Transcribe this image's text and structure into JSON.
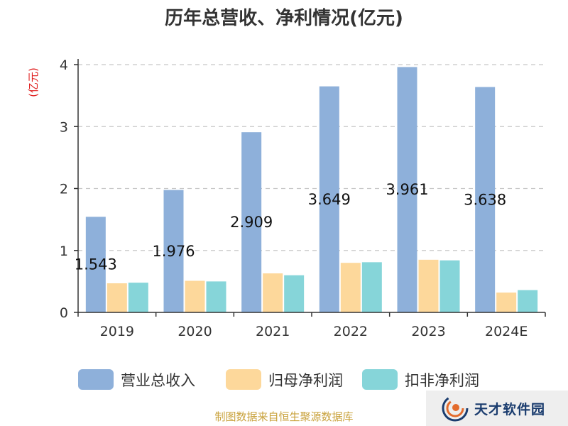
{
  "chart_data": {
    "type": "bar",
    "title": "历年总营收、净利情况(亿元)",
    "y_unit": "(亿元)",
    "categories": [
      "2019",
      "2020",
      "2021",
      "2022",
      "2023",
      "2024E"
    ],
    "series": [
      {
        "name": "营业总收入",
        "color": "#8eb0da",
        "values": [
          1.543,
          1.976,
          2.909,
          3.649,
          3.961,
          3.638
        ],
        "labels": [
          "1.543",
          "1.976",
          "2.909",
          "3.649",
          "3.961",
          "3.638"
        ]
      },
      {
        "name": "归母净利润",
        "color": "#fdd89b",
        "values": [
          0.47,
          0.51,
          0.63,
          0.8,
          0.85,
          0.32
        ]
      },
      {
        "name": "扣非净利润",
        "color": "#86d5d9",
        "values": [
          0.48,
          0.5,
          0.6,
          0.81,
          0.84,
          0.36
        ]
      }
    ],
    "ylim": [
      0,
      4
    ],
    "yticks": [
      0,
      1,
      2,
      3,
      4
    ],
    "grid": true,
    "legend_position": "bottom"
  },
  "source_text": "制图数据来自恒生聚源数据库",
  "logo": {
    "text": "天才软件园",
    "icon": "swirl-logo-icon"
  }
}
